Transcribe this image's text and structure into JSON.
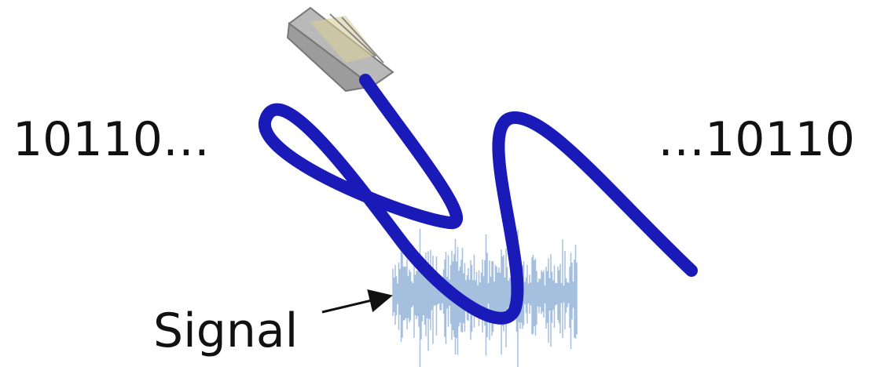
{
  "labels": {
    "left": "10110…",
    "right": "…10110",
    "signal": "Signal"
  }
}
